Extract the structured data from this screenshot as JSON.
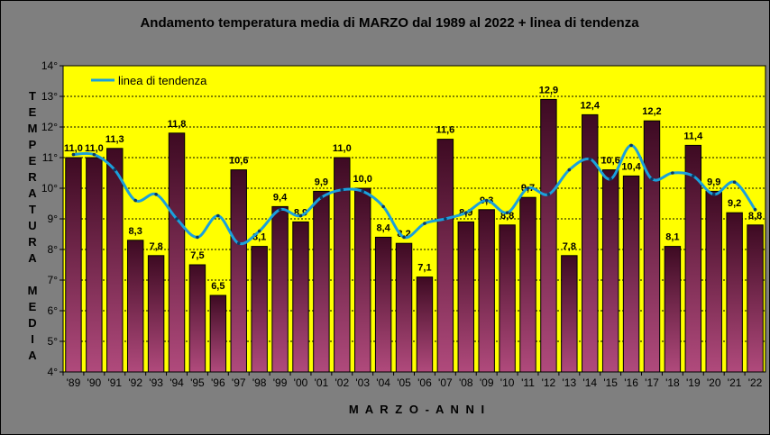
{
  "chart_data": {
    "type": "bar",
    "title": "Andamento temperatura media di MARZO dal 1989 al 2022 + linea di tendenza",
    "xlabel": "M A R Z O - A N N I",
    "ylabel_lines": [
      "T",
      "E",
      "M",
      "P",
      "E",
      "R",
      "A",
      "T",
      "U",
      "R",
      "A",
      "",
      "M",
      "E",
      "D",
      "I",
      "A"
    ],
    "ylim": [
      4,
      14
    ],
    "yticks": [
      4,
      5,
      6,
      7,
      8,
      9,
      10,
      11,
      12,
      13,
      14
    ],
    "ytick_suffix": "°",
    "categories": [
      "'89",
      "'90",
      "'91",
      "'92",
      "'93",
      "'94",
      "'95",
      "'96",
      "'97",
      "'98",
      "'99",
      "'00",
      "'01",
      "'02",
      "'03",
      "'04",
      "'05",
      "'06",
      "'07",
      "'08",
      "'09",
      "'10",
      "'11",
      "'12",
      "'13",
      "'14",
      "'15",
      "'16",
      "'17",
      "'18",
      "'19",
      "'20",
      "'21",
      "'22"
    ],
    "values": [
      11.0,
      11.0,
      11.3,
      8.3,
      7.8,
      11.8,
      7.5,
      6.5,
      10.6,
      8.1,
      9.4,
      8.9,
      9.9,
      11.0,
      10.0,
      8.4,
      8.2,
      7.1,
      11.6,
      8.9,
      9.3,
      8.8,
      9.7,
      12.9,
      7.8,
      12.4,
      10.6,
      10.4,
      12.2,
      8.1,
      11.4,
      9.9,
      9.2,
      8.8
    ],
    "data_labels": [
      "11,0",
      "11,0",
      "11,3",
      "8,3",
      "7,8",
      "11,8",
      "7,5",
      "6,5",
      "10,6",
      "8,1",
      "9,4",
      "8,9",
      "9,9",
      "11,0",
      "10,0",
      "8,4",
      "8,2",
      "7,1",
      "11,6",
      "8,9",
      "9,3",
      "8,8",
      "9,7",
      "12,9",
      "7,8",
      "12,4",
      "10,6",
      "10,4",
      "12,2",
      "8,1",
      "11,4",
      "9,9",
      "9,2",
      "8,8"
    ],
    "trend": {
      "name": "linea di tendenza",
      "values": [
        11.1,
        11.1,
        10.6,
        9.6,
        9.8,
        9.0,
        8.4,
        9.1,
        8.2,
        8.6,
        9.3,
        9.1,
        9.7,
        9.95,
        9.9,
        9.4,
        8.4,
        8.85,
        9.0,
        9.2,
        9.6,
        9.2,
        10.0,
        9.8,
        10.6,
        10.95,
        10.3,
        11.4,
        10.3,
        10.5,
        10.4,
        9.8,
        10.2,
        9.3
      ]
    },
    "legend_position": "top-left",
    "grid": true,
    "colors": {
      "plot_bg": "#ffff00",
      "outer_bg": "#7f7f7f",
      "bar_top": "#3d0a22",
      "bar_bottom": "#b04a7c",
      "trend_line": "#1aa0dc",
      "grid": "#000000"
    }
  }
}
